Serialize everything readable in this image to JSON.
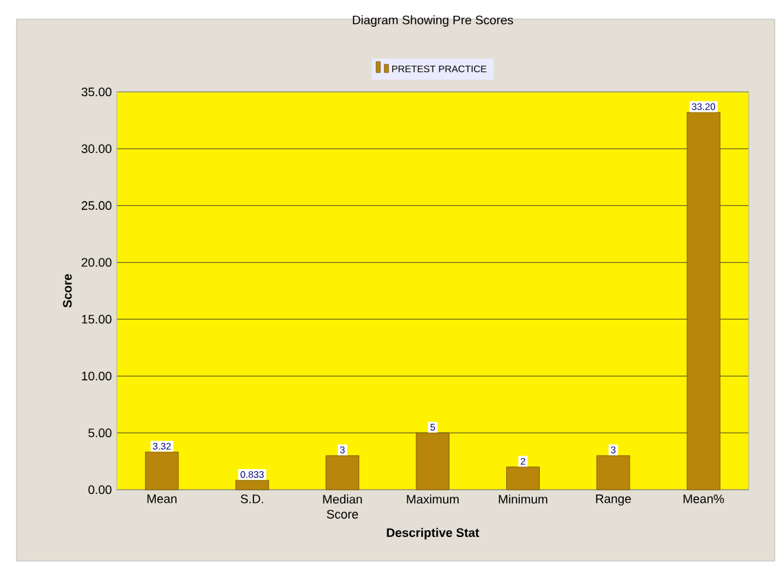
{
  "chart_data": {
    "type": "bar",
    "title": "Diagram Showing Pre Scores",
    "xlabel": "Descriptive Stat",
    "ylabel": "Score",
    "categories": [
      "Mean",
      "S.D.",
      "Median Score",
      "Maximum",
      "Minimum",
      "Range",
      "Mean%"
    ],
    "series": [
      {
        "name": "PRETEST PRACTICE",
        "color": "#b8860b",
        "values": [
          3.32,
          0.833,
          3,
          5,
          2,
          3,
          33.2
        ],
        "value_labels": [
          "3.32",
          "0.833",
          "3",
          "5",
          "2",
          "3",
          "33.20"
        ]
      }
    ],
    "ylim": [
      0,
      35
    ],
    "yticks": [
      {
        "value": 0,
        "label": "0.00"
      },
      {
        "value": 5,
        "label": "5.00"
      },
      {
        "value": 10,
        "label": "10.00"
      },
      {
        "value": 15,
        "label": "15.00"
      },
      {
        "value": 20,
        "label": "20.00"
      },
      {
        "value": 25,
        "label": "25.00"
      },
      {
        "value": 30,
        "label": "30.00"
      },
      {
        "value": 35,
        "label": "35.00"
      }
    ],
    "grid": "y",
    "legend": "top"
  }
}
